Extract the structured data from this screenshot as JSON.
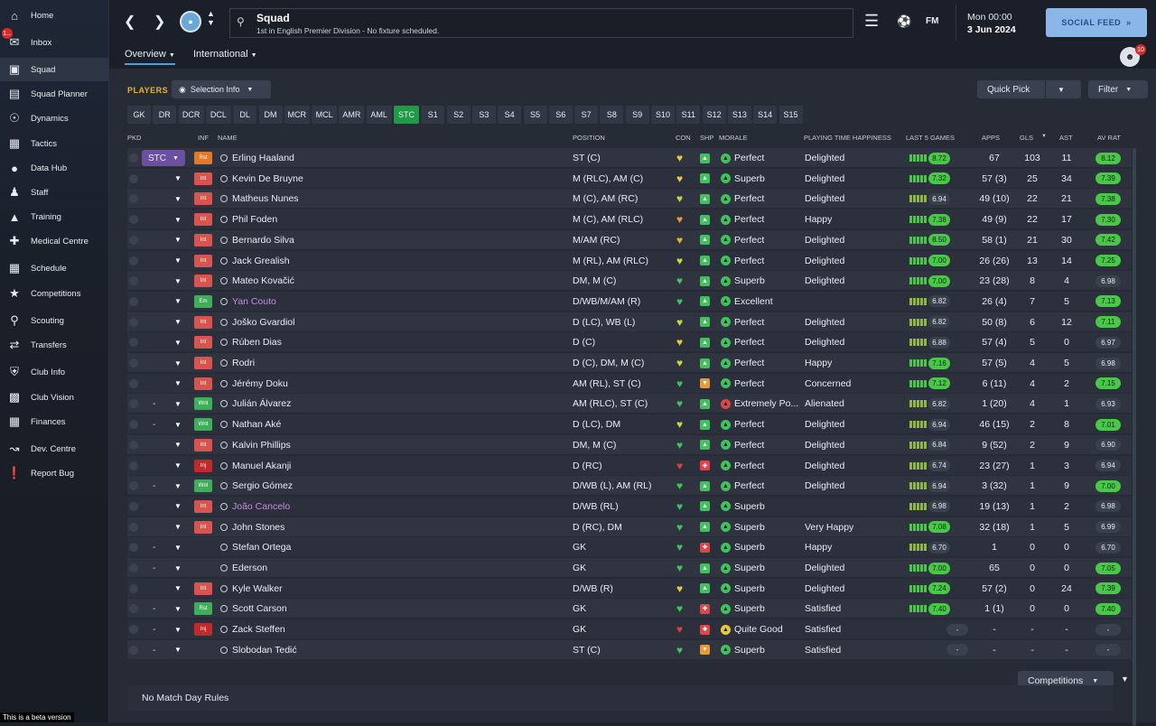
{
  "sidebar": {
    "items": [
      {
        "label": "Home",
        "icon": "home-icon"
      },
      {
        "label": "Inbox",
        "icon": "inbox-icon",
        "badge": "1..."
      },
      {
        "label": "Squad",
        "icon": "shirt-icon",
        "active": true
      },
      {
        "label": "Squad Planner",
        "icon": "clipboard-icon"
      },
      {
        "label": "Dynamics",
        "icon": "dynamics-icon"
      },
      {
        "label": "Tactics",
        "icon": "tactics-icon"
      },
      {
        "label": "Data Hub",
        "icon": "data-hub-icon"
      },
      {
        "label": "Staff",
        "icon": "staff-icon"
      },
      {
        "label": "Training",
        "icon": "training-icon"
      },
      {
        "label": "Medical Centre",
        "icon": "medical-icon"
      },
      {
        "label": "Schedule",
        "icon": "calendar-icon"
      },
      {
        "label": "Competitions",
        "icon": "trophy-icon"
      },
      {
        "label": "Scouting",
        "icon": "search-icon"
      },
      {
        "label": "Transfers",
        "icon": "transfers-icon"
      },
      {
        "label": "Club Info",
        "icon": "shield-icon"
      },
      {
        "label": "Club Vision",
        "icon": "briefcase-icon"
      },
      {
        "label": "Finances",
        "icon": "money-icon"
      },
      {
        "label": "Dev. Centre",
        "icon": "dev-centre-icon"
      },
      {
        "label": "Report Bug",
        "icon": "bug-icon"
      }
    ],
    "beta_text": "This is a beta version"
  },
  "header": {
    "title": "Squad",
    "subtitle": "1st in English Premier Division - No fixture scheduled.",
    "date_line1": "Mon 00:00",
    "date_line2": "3 Jun 2024",
    "fm_label": "FM",
    "social_feed": "SOCIAL FEED",
    "avatar_badge": "10"
  },
  "subnav": {
    "tabs": [
      "Overview",
      "International"
    ]
  },
  "toolbar": {
    "players_label": "PLAYERS",
    "selection_info": "Selection Info",
    "quick_pick": "Quick Pick",
    "filter": "Filter"
  },
  "positions": [
    "GK",
    "DR",
    "DCR",
    "DCL",
    "DL",
    "DM",
    "MCR",
    "MCL",
    "AMR",
    "AML",
    "STC",
    "S1",
    "S2",
    "S3",
    "S4",
    "S5",
    "S6",
    "S7",
    "S8",
    "S9",
    "S10",
    "S11",
    "S12",
    "S13",
    "S14",
    "S15"
  ],
  "active_position": "STC",
  "columns": {
    "pkd": "PKD",
    "inf": "INF",
    "name": "NAME",
    "position": "POSITION",
    "con": "CON",
    "shp": "SHP",
    "morale": "MORALE",
    "pth": "PLAYING TIME HAPPINESS",
    "l5": "LAST 5 GAMES",
    "apps": "APPS",
    "gls": "GLS",
    "ast": "AST",
    "avrat": "AV RAT"
  },
  "players": [
    {
      "sel": "STC",
      "inf": "Rst",
      "infc": "#e07a2b",
      "name": "Erling Haaland",
      "pos": "ST (C)",
      "con": "#e8c83a",
      "shp": "#3fc25b",
      "mor": "Perfect",
      "morc": "#3fc25b",
      "pth": "Delighted",
      "l5": "8.72",
      "l5c": "#47c846",
      "apps": "67",
      "gls": "103",
      "ast": "11",
      "av": "8.12",
      "avc": "#47c846",
      "lnk": false
    },
    {
      "sel": "",
      "inf": "Int",
      "infc": "#d9534f",
      "name": "Kevin De Bruyne",
      "pos": "M (RLC), AM (C)",
      "con": "#e8c83a",
      "shp": "#3fc25b",
      "mor": "Superb",
      "morc": "#3fc25b",
      "pth": "Delighted",
      "l5": "7.32",
      "l5c": "#47c846",
      "apps": "57 (3)",
      "gls": "25",
      "ast": "34",
      "av": "7.39",
      "avc": "#47c846",
      "lnk": false
    },
    {
      "sel": "",
      "inf": "Int",
      "infc": "#d9534f",
      "name": "Matheus Nunes",
      "pos": "M (C), AM (RC)",
      "con": "#c7d83a",
      "shp": "#3fc25b",
      "mor": "Perfect",
      "morc": "#3fc25b",
      "pth": "Delighted",
      "l5": "6.94",
      "l5c": "#3a404c",
      "apps": "49 (10)",
      "gls": "22",
      "ast": "21",
      "av": "7.38",
      "avc": "#47c846",
      "lnk": false
    },
    {
      "sel": "",
      "inf": "Int",
      "infc": "#d9534f",
      "name": "Phil Foden",
      "pos": "M (C), AM (RLC)",
      "con": "#e89a3a",
      "shp": "#3fc25b",
      "mor": "Perfect",
      "morc": "#3fc25b",
      "pth": "Happy",
      "l5": "7.38",
      "l5c": "#47c846",
      "apps": "49 (9)",
      "gls": "22",
      "ast": "17",
      "av": "7.30",
      "avc": "#47c846",
      "lnk": false
    },
    {
      "sel": "",
      "inf": "Int",
      "infc": "#d9534f",
      "name": "Bernardo Silva",
      "pos": "M/AM (RC)",
      "con": "#d8b43a",
      "shp": "#3fc25b",
      "mor": "Perfect",
      "morc": "#3fc25b",
      "pth": "Delighted",
      "l5": "8.50",
      "l5c": "#47c846",
      "apps": "58 (1)",
      "gls": "21",
      "ast": "30",
      "av": "7.42",
      "avc": "#47c846",
      "lnk": false
    },
    {
      "sel": "",
      "inf": "Int",
      "infc": "#d9534f",
      "name": "Jack Grealish",
      "pos": "M (RL), AM (RLC)",
      "con": "#c7d83a",
      "shp": "#3fc25b",
      "mor": "Perfect",
      "morc": "#3fc25b",
      "pth": "Delighted",
      "l5": "7.00",
      "l5c": "#47c846",
      "apps": "26 (26)",
      "gls": "13",
      "ast": "14",
      "av": "7.25",
      "avc": "#47c846",
      "lnk": false
    },
    {
      "sel": "",
      "inf": "Int",
      "infc": "#d9534f",
      "name": "Mateo Kovačić",
      "pos": "DM, M (C)",
      "con": "#3fc25b",
      "shp": "#3fc25b",
      "mor": "Superb",
      "morc": "#3fc25b",
      "pth": "Delighted",
      "l5": "7.00",
      "l5c": "#47c846",
      "apps": "23 (28)",
      "gls": "8",
      "ast": "4",
      "av": "6.98",
      "avc": "#3a404c",
      "lnk": false
    },
    {
      "sel": "",
      "inf": "Em",
      "infc": "#3fae5b",
      "name": "Yan Couto",
      "pos": "D/WB/M/AM (R)",
      "con": "#3fc25b",
      "shp": "#3fc25b",
      "mor": "Excellent",
      "morc": "#3fc25b",
      "pth": "",
      "l5": "6.82",
      "l5c": "#3a404c",
      "apps": "26 (4)",
      "gls": "7",
      "ast": "5",
      "av": "7.13",
      "avc": "#47c846",
      "lnk": true
    },
    {
      "sel": "",
      "inf": "Int",
      "infc": "#d9534f",
      "name": "Joško Gvardiol",
      "pos": "D (LC), WB (L)",
      "con": "#c7d83a",
      "shp": "#3fc25b",
      "mor": "Perfect",
      "morc": "#3fc25b",
      "pth": "Delighted",
      "l5": "6.82",
      "l5c": "#3a404c",
      "apps": "50 (8)",
      "gls": "6",
      "ast": "12",
      "av": "7.11",
      "avc": "#47c846",
      "lnk": false
    },
    {
      "sel": "",
      "inf": "Int",
      "infc": "#d9534f",
      "name": "Rúben Dias",
      "pos": "D (C)",
      "con": "#e8c83a",
      "shp": "#3fc25b",
      "mor": "Perfect",
      "morc": "#3fc25b",
      "pth": "Delighted",
      "l5": "6.88",
      "l5c": "#3a404c",
      "apps": "57 (4)",
      "gls": "5",
      "ast": "0",
      "av": "6.97",
      "avc": "#3a404c",
      "lnk": false
    },
    {
      "sel": "",
      "inf": "Int",
      "infc": "#d9534f",
      "name": "Rodri",
      "pos": "D (C), DM, M (C)",
      "con": "#c7d83a",
      "shp": "#3fc25b",
      "mor": "Perfect",
      "morc": "#3fc25b",
      "pth": "Happy",
      "l5": "7.16",
      "l5c": "#47c846",
      "apps": "57 (5)",
      "gls": "4",
      "ast": "5",
      "av": "6.98",
      "avc": "#3a404c",
      "lnk": false
    },
    {
      "sel": "",
      "inf": "Int",
      "infc": "#d9534f",
      "name": "Jérémy Doku",
      "pos": "AM (RL), ST (C)",
      "con": "#3fc25b",
      "shp": "#e89a3a",
      "mor": "Perfect",
      "morc": "#3fc25b",
      "pth": "Concerned",
      "l5": "7.12",
      "l5c": "#47c846",
      "apps": "6 (11)",
      "gls": "4",
      "ast": "2",
      "av": "7.15",
      "avc": "#47c846",
      "lnk": false
    },
    {
      "sel": "-",
      "inf": "Wnt",
      "infc": "#3fae5b",
      "name": "Julián Álvarez",
      "pos": "AM (RLC), ST (C)",
      "con": "#3fc25b",
      "shp": "#3fc25b",
      "mor": "Extremely Po...",
      "morc": "#e04545",
      "pth": "Alienated",
      "l5": "6.82",
      "l5c": "#3a404c",
      "apps": "1 (20)",
      "gls": "4",
      "ast": "1",
      "av": "6.93",
      "avc": "#3a404c",
      "lnk": false
    },
    {
      "sel": "-",
      "inf": "Wnt",
      "infc": "#3fae5b",
      "name": "Nathan Aké",
      "pos": "D (LC), DM",
      "con": "#c7d83a",
      "shp": "#3fc25b",
      "mor": "Perfect",
      "morc": "#3fc25b",
      "pth": "Delighted",
      "l5": "6.94",
      "l5c": "#3a404c",
      "apps": "46 (15)",
      "gls": "2",
      "ast": "8",
      "av": "7.01",
      "avc": "#47c846",
      "lnk": false
    },
    {
      "sel": "",
      "inf": "Int",
      "infc": "#d9534f",
      "name": "Kalvin Phillips",
      "pos": "DM, M (C)",
      "con": "#3fc25b",
      "shp": "#3fc25b",
      "mor": "Perfect",
      "morc": "#3fc25b",
      "pth": "Delighted",
      "l5": "6.84",
      "l5c": "#3a404c",
      "apps": "9 (52)",
      "gls": "2",
      "ast": "9",
      "av": "6.90",
      "avc": "#3a404c",
      "lnk": false
    },
    {
      "sel": "",
      "inf": "Inj",
      "infc": "#c02a2a",
      "name": "Manuel Akanji",
      "pos": "D (RC)",
      "con": "#d94040",
      "shp": "#e04545",
      "mor": "Perfect",
      "morc": "#3fc25b",
      "pth": "Delighted",
      "l5": "6.74",
      "l5c": "#3a404c",
      "apps": "23 (27)",
      "gls": "1",
      "ast": "3",
      "av": "6.94",
      "avc": "#3a404c",
      "lnk": false
    },
    {
      "sel": "-",
      "inf": "Wnt",
      "infc": "#3fae5b",
      "name": "Sergio Gómez",
      "pos": "D/WB (L), AM (RL)",
      "con": "#3fc25b",
      "shp": "#3fc25b",
      "mor": "Perfect",
      "morc": "#3fc25b",
      "pth": "Delighted",
      "l5": "6.94",
      "l5c": "#3a404c",
      "apps": "3 (32)",
      "gls": "1",
      "ast": "9",
      "av": "7.00",
      "avc": "#47c846",
      "lnk": false
    },
    {
      "sel": "",
      "inf": "Int",
      "infc": "#d9534f",
      "name": "João Cancelo",
      "pos": "D/WB (RL)",
      "con": "#3fc25b",
      "shp": "#3fc25b",
      "mor": "Superb",
      "morc": "#3fc25b",
      "pth": "",
      "l5": "6.98",
      "l5c": "#3a404c",
      "apps": "19 (13)",
      "gls": "1",
      "ast": "2",
      "av": "6.98",
      "avc": "#3a404c",
      "lnk": true
    },
    {
      "sel": "",
      "inf": "Int",
      "infc": "#d9534f",
      "name": "John Stones",
      "pos": "D (RC), DM",
      "con": "#3fc25b",
      "shp": "#3fc25b",
      "mor": "Superb",
      "morc": "#3fc25b",
      "pth": "Very Happy",
      "l5": "7.08",
      "l5c": "#47c846",
      "apps": "32 (18)",
      "gls": "1",
      "ast": "5",
      "av": "6.99",
      "avc": "#3a404c",
      "lnk": false
    },
    {
      "sel": "-",
      "inf": "",
      "infc": "",
      "name": "Stefan Ortega",
      "pos": "GK",
      "con": "#3fc25b",
      "shp": "#e04545",
      "mor": "Superb",
      "morc": "#3fc25b",
      "pth": "Happy",
      "l5": "6.70",
      "l5c": "#3a404c",
      "apps": "1",
      "gls": "0",
      "ast": "0",
      "av": "6.70",
      "avc": "#3a404c",
      "lnk": false
    },
    {
      "sel": "-",
      "inf": "",
      "infc": "",
      "name": "Ederson",
      "pos": "GK",
      "con": "#3fc25b",
      "shp": "#3fc25b",
      "mor": "Superb",
      "morc": "#3fc25b",
      "pth": "Delighted",
      "l5": "7.00",
      "l5c": "#47c846",
      "apps": "65",
      "gls": "0",
      "ast": "0",
      "av": "7.05",
      "avc": "#47c846",
      "lnk": false
    },
    {
      "sel": "",
      "inf": "Int",
      "infc": "#d9534f",
      "name": "Kyle Walker",
      "pos": "D/WB (R)",
      "con": "#e8c83a",
      "shp": "#3fc25b",
      "mor": "Superb",
      "morc": "#3fc25b",
      "pth": "Delighted",
      "l5": "7.24",
      "l5c": "#47c846",
      "apps": "57 (2)",
      "gls": "0",
      "ast": "24",
      "av": "7.39",
      "avc": "#47c846",
      "lnk": false
    },
    {
      "sel": "-",
      "inf": "Rst",
      "infc": "#3fae5b",
      "name": "Scott Carson",
      "pos": "GK",
      "con": "#3fc25b",
      "shp": "#e04545",
      "mor": "Superb",
      "morc": "#3fc25b",
      "pth": "Satisfied",
      "l5": "7.40",
      "l5c": "#47c846",
      "apps": "1 (1)",
      "gls": "0",
      "ast": "0",
      "av": "7.40",
      "avc": "#47c846",
      "lnk": false
    },
    {
      "sel": "-",
      "inf": "Inj",
      "infc": "#c02a2a",
      "name": "Zack Steffen",
      "pos": "GK",
      "con": "#d94040",
      "shp": "#e04545",
      "mor": "Quite Good",
      "morc": "#e8c83a",
      "pth": "Satisfied",
      "l5": "-",
      "l5c": "#3a404c",
      "apps": "-",
      "gls": "-",
      "ast": "-",
      "av": "-",
      "avc": "#3a404c",
      "lnk": false
    },
    {
      "sel": "-",
      "inf": "",
      "infc": "",
      "name": "Slobodan Tedić",
      "pos": "ST (C)",
      "con": "#3fc25b",
      "shp": "#e89a3a",
      "mor": "Superb",
      "morc": "#3fc25b",
      "pth": "Satisfied",
      "l5": "-",
      "l5c": "#3a404c",
      "apps": "-",
      "gls": "-",
      "ast": "-",
      "av": "-",
      "avc": "#3a404c",
      "lnk": false
    }
  ],
  "footer": {
    "competitions": "Competitions",
    "no_match": "No Match Day Rules"
  }
}
